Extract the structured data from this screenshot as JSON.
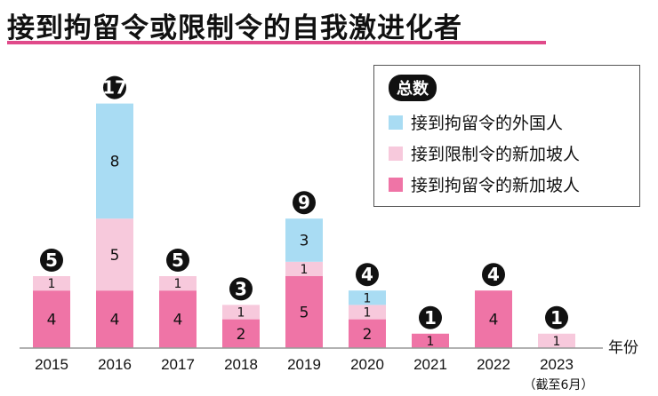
{
  "title": "接到拘留令或限制令的自我激进化者",
  "legend": {
    "title": "总数",
    "items": [
      {
        "label": "接到拘留令的外国人",
        "color": "#a9dcf3"
      },
      {
        "label": "接到限制令的新加坡人",
        "color": "#f7c9dc"
      },
      {
        "label": "接到拘留令的新加坡人",
        "color": "#ef74a6"
      }
    ]
  },
  "chart_data": {
    "type": "bar",
    "stacked": true,
    "categories": [
      "2015",
      "2016",
      "2017",
      "2018",
      "2019",
      "2020",
      "2021",
      "2022",
      "2023"
    ],
    "category_notes": {
      "2023": "（截至6月）"
    },
    "series": [
      {
        "name": "接到拘留令的新加坡人",
        "values": [
          4,
          4,
          4,
          2,
          5,
          2,
          1,
          4,
          0
        ],
        "color": "#ef74a6"
      },
      {
        "name": "接到限制令的新加坡人",
        "values": [
          1,
          5,
          1,
          1,
          1,
          1,
          0,
          0,
          1
        ],
        "color": "#f7c9dc"
      },
      {
        "name": "接到拘留令的外国人",
        "values": [
          0,
          8,
          0,
          0,
          3,
          1,
          0,
          0,
          0
        ],
        "color": "#a9dcf3"
      }
    ],
    "totals": [
      5,
      17,
      5,
      3,
      9,
      4,
      1,
      4,
      1
    ],
    "xlabel": "年份",
    "ylabel": "",
    "ylim": [
      0,
      17
    ],
    "grid": false,
    "legend_position": "top-right"
  }
}
